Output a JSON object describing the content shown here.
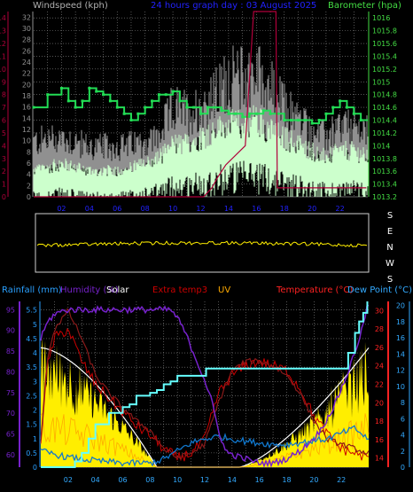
{
  "colors": {
    "background": "#000000",
    "grid": "#8a8a8a",
    "left_axis_top": "#b0003a",
    "gust_series": "#909090",
    "wind_series": "#ccffcc",
    "barometer_series": "#22dd55",
    "barometer_axis": "#44dd44",
    "direction_series": "#ffee00",
    "rain_fill": "#ffee00",
    "rainfall_label": "#2aa0ff",
    "humidity": "#7722cc",
    "solar": "#ffffff",
    "extra_temp": "#cc0000",
    "uv": "#ffaa00",
    "temperature": "#c00000",
    "dew_point": "#1177cc",
    "temp_label": "#ff2222",
    "dew_label": "#33aaff",
    "cyan_rain_total": "#66ffff",
    "date_text": "#2222ff"
  },
  "chart_data": [
    {
      "type": "line",
      "panel": "wind_barometer",
      "header": {
        "left": "Windspeed (kph)",
        "center": "24 hours graph day : 03 August 2025",
        "right": "Barometer (hpa)"
      },
      "x_ticks": [
        "02",
        "04",
        "06",
        "08",
        "10",
        "12",
        "14",
        "16",
        "18",
        "20",
        "22"
      ],
      "y_left_outer": {
        "ticks": [
          0,
          1,
          2,
          3,
          4,
          5,
          6,
          7,
          8,
          9,
          10,
          11,
          12,
          13,
          14
        ],
        "range": [
          0,
          14.5
        ]
      },
      "y_left_inner": {
        "ticks": [
          0,
          2,
          4,
          6,
          8,
          10,
          12,
          14,
          16,
          18,
          20,
          22,
          24,
          26,
          28,
          30,
          32
        ],
        "range": [
          0,
          33
        ]
      },
      "y_right": {
        "ticks": [
          "1013.2",
          "1013.4",
          "1013.6",
          "1013.8",
          "1014",
          "1014.2",
          "1014.4",
          "1014.6",
          "1014.8",
          "1015",
          "1015.2",
          "1015.4",
          "1015.6",
          "1015.8",
          "1016"
        ],
        "range": [
          1013.2,
          1016.1
        ]
      },
      "series": [
        {
          "name": "Barometer",
          "hours": [
            0,
            1,
            2,
            2.5,
            3,
            3.5,
            4,
            4.5,
            5,
            5.5,
            6,
            6.5,
            7,
            7.5,
            8,
            8.5,
            9,
            9.5,
            10,
            10.5,
            11,
            11.5,
            12,
            12.5,
            13,
            13.5,
            14,
            14.5,
            15,
            15.5,
            16,
            16.5,
            17,
            17.5,
            18,
            18.5,
            19,
            19.5,
            20,
            20.5,
            21,
            21.5,
            22,
            22.5,
            23,
            23.5
          ],
          "values": [
            1014.6,
            1014.8,
            1014.9,
            1014.7,
            1014.6,
            1014.7,
            1014.9,
            1014.85,
            1014.8,
            1014.7,
            1014.6,
            1014.5,
            1014.4,
            1014.5,
            1014.6,
            1014.7,
            1014.8,
            1014.8,
            1014.85,
            1014.7,
            1014.6,
            1014.6,
            1014.5,
            1014.6,
            1014.6,
            1014.55,
            1014.5,
            1014.5,
            1014.45,
            1014.5,
            1014.5,
            1014.55,
            1014.5,
            1014.5,
            1014.4,
            1014.4,
            1014.4,
            1014.4,
            1014.35,
            1014.4,
            1014.5,
            1014.6,
            1014.7,
            1014.6,
            1014.5,
            1014.4
          ]
        },
        {
          "name": "Max (gust) envelope",
          "hours": [
            0,
            2,
            4,
            6,
            8,
            9,
            10,
            11,
            12,
            13,
            14,
            15,
            16,
            17,
            18,
            19,
            20,
            21,
            22,
            23,
            23.9
          ],
          "values": [
            5.5,
            6,
            5,
            5,
            5.5,
            6,
            9,
            8.5,
            9,
            10,
            12,
            12,
            12.5,
            11,
            9,
            8,
            6.5,
            6,
            7,
            7,
            6.5
          ]
        },
        {
          "name": "Average envelope",
          "hours": [
            0,
            2,
            4,
            6,
            8,
            9,
            10,
            11,
            12,
            13,
            14,
            15,
            16,
            17,
            18,
            19,
            20,
            21,
            22,
            23,
            23.9
          ],
          "values": [
            2,
            2.5,
            2,
            2,
            2.5,
            3,
            4,
            4,
            4.5,
            5,
            5.5,
            5.5,
            6,
            5,
            4.5,
            4,
            3.5,
            3,
            3.5,
            3.5,
            3
          ]
        },
        {
          "name": "Left-axis line (rises 13-16h)",
          "hours": [
            0,
            12.2,
            12.8,
            13.2,
            13.8,
            15.2,
            15.8,
            17.4,
            17.5,
            23.9
          ],
          "values": [
            0,
            0,
            0.7,
            1.5,
            2.5,
            4,
            14.5,
            14.5,
            0.7,
            0.7
          ]
        }
      ]
    },
    {
      "type": "line",
      "panel": "wind_direction",
      "direction_labels": [
        "S",
        "E",
        "N",
        "W",
        "S"
      ],
      "series": [
        {
          "name": "Wind direction",
          "level_fraction": 0.5
        }
      ]
    },
    {
      "type": "line",
      "panel": "rain_humidity_temp",
      "header": {
        "rainfall": "Rainfall (mm)",
        "humidity": "Humidity (%)",
        "solar": "Solar",
        "extra_temp": "Extra temp3",
        "uv": "UV",
        "temperature": "Temperature (°C)",
        "dew_point": "Dew Point (°C)"
      },
      "x_ticks": [
        "02",
        "04",
        "06",
        "08",
        "10",
        "12",
        "14",
        "16",
        "18",
        "20",
        "22"
      ],
      "y_humidity": {
        "ticks": [
          60,
          65,
          70,
          75,
          80,
          85,
          90,
          95
        ],
        "range": [
          57,
          97
        ]
      },
      "y_rain": {
        "ticks": [
          "0",
          "0.5",
          "1",
          "1.5",
          "2",
          "2.5",
          "3",
          "3.5",
          "4",
          "4.5",
          "5",
          "5.5"
        ],
        "range": [
          0,
          5.8
        ]
      },
      "y_temp": {
        "ticks": [
          14,
          16,
          18,
          20,
          22,
          24,
          26,
          28,
          30
        ],
        "range": [
          13,
          31
        ]
      },
      "y_dew": {
        "ticks": [
          0,
          2,
          4,
          6,
          8,
          10,
          12,
          14,
          16,
          18,
          20
        ],
        "range": [
          0,
          20.5
        ]
      },
      "series": [
        {
          "name": "Humidity",
          "hours": [
            0,
            0.5,
            1,
            2,
            3,
            4,
            5,
            6,
            7,
            8,
            9,
            9.5,
            10,
            10.5,
            11,
            11.5,
            12,
            12.5,
            13,
            13.5,
            14,
            15,
            16,
            17,
            18,
            19,
            20,
            20.5,
            21,
            21.5,
            22,
            22.5,
            23,
            23.5,
            23.9
          ],
          "values": [
            88,
            92,
            94,
            95,
            95,
            95,
            95,
            95,
            95,
            95,
            95,
            95,
            93,
            90,
            86,
            82,
            78,
            73,
            66,
            61,
            60,
            59,
            58,
            58,
            59,
            61,
            64,
            66,
            69,
            72,
            76,
            80,
            85,
            90,
            96
          ]
        },
        {
          "name": "Rain total",
          "hours": [
            0,
            1,
            2,
            2.5,
            3,
            3.5,
            4,
            5,
            6,
            6.5,
            7,
            8,
            8.5,
            9,
            9.5,
            10,
            12,
            12.1,
            14,
            16,
            18,
            20,
            22,
            22.5,
            23,
            23.3,
            23.6,
            23.9
          ],
          "values": [
            0,
            0,
            0,
            0.2,
            0.5,
            1.0,
            1.5,
            1.9,
            2.1,
            2.2,
            2.5,
            2.6,
            2.7,
            2.9,
            3.0,
            3.2,
            3.2,
            3.45,
            3.45,
            3.45,
            3.45,
            3.45,
            3.45,
            4.0,
            4.7,
            5.1,
            5.4,
            5.8
          ]
        },
        {
          "name": "Temperature",
          "hours": [
            0,
            0.5,
            1,
            2,
            3,
            4,
            5,
            6,
            7,
            8,
            9,
            10,
            11,
            12,
            13,
            14,
            15,
            16,
            17,
            18,
            19,
            20,
            21,
            22,
            23,
            23.9
          ],
          "values": [
            16,
            25,
            28,
            30,
            27,
            23,
            21,
            19.5,
            18,
            17,
            15,
            14,
            14.5,
            15.5,
            20,
            23.5,
            24.5,
            24.5,
            24,
            23,
            21,
            18,
            16,
            15.5,
            15,
            14.5
          ]
        },
        {
          "name": "Dew point",
          "hours": [
            0,
            2,
            4,
            6,
            8,
            9,
            10,
            11,
            12,
            13,
            14,
            15,
            16,
            17,
            18,
            19,
            20,
            21,
            22,
            23,
            23.9
          ],
          "values": [
            2,
            1.2,
            0.8,
            0.5,
            0.5,
            1.0,
            2.0,
            3.0,
            3.5,
            3.8,
            3.5,
            3.2,
            3.0,
            2.8,
            2.8,
            3.0,
            3.3,
            3.5,
            4.2,
            4.8,
            3.5
          ]
        },
        {
          "name": "Extra temp3",
          "hours": [
            0,
            0.5,
            1,
            2,
            3,
            4,
            5,
            6,
            7,
            8,
            9,
            10,
            11,
            12,
            13,
            14,
            15,
            16,
            17,
            18,
            19,
            20,
            21,
            22,
            23,
            23.9
          ],
          "values": [
            16,
            24,
            27,
            28,
            24.5,
            22,
            20.5,
            19,
            17.5,
            16.5,
            15,
            14,
            14.5,
            16,
            21,
            23,
            24,
            24.5,
            24,
            23.5,
            21.5,
            18.5,
            16.5,
            15,
            14.5,
            14
          ]
        }
      ]
    }
  ]
}
